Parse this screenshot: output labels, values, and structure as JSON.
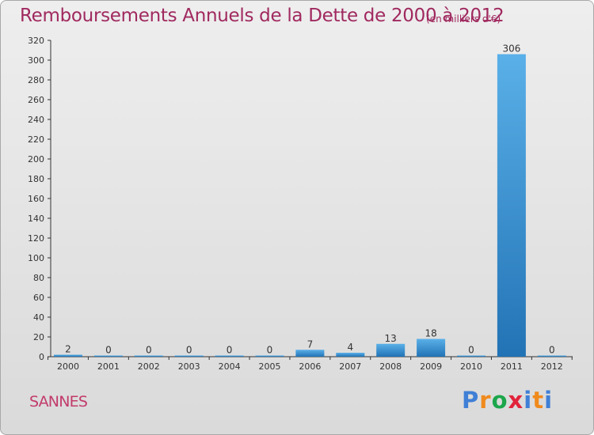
{
  "title": "Remboursements Annuels de la Dette de 2000 à 2012",
  "subtitle": "(en milliers d'€)",
  "place_name": "SANNES",
  "logo": {
    "letters": [
      "P",
      "r",
      "o",
      "x",
      "i",
      "t",
      "i"
    ],
    "colors": [
      "#3f7fd6",
      "#f08a1c",
      "#1da64b",
      "#e2233b",
      "#3f7fd6",
      "#f08a1c",
      "#3f7fd6"
    ]
  },
  "colors": {
    "title": "#a0295f",
    "bar_light": "#5ab0e8",
    "bar_dark": "#2273b5",
    "axis": "#333333"
  },
  "chart_data": {
    "type": "bar",
    "title": "Remboursements Annuels de la Dette de 2000 à 2012",
    "subtitle": "(en milliers d'€)",
    "xlabel": "",
    "ylabel": "",
    "categories": [
      "2000",
      "2001",
      "2002",
      "2003",
      "2004",
      "2005",
      "2006",
      "2007",
      "2008",
      "2009",
      "2010",
      "2011",
      "2012"
    ],
    "values": [
      2,
      0,
      0,
      0,
      0,
      0,
      7,
      4,
      13,
      18,
      0,
      306,
      0
    ],
    "ylim": [
      0,
      320
    ],
    "yticks": [
      0,
      20,
      40,
      60,
      80,
      100,
      120,
      140,
      160,
      180,
      200,
      220,
      240,
      260,
      280,
      300,
      320
    ],
    "grid": false,
    "legend": "none"
  }
}
